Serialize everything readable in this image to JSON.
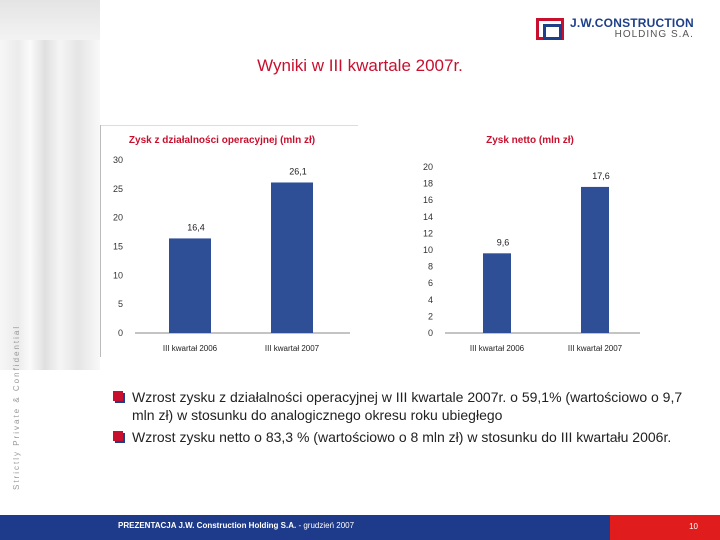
{
  "brand": {
    "name": "J.W.CONSTRUCTION",
    "sub": "HOLDING S.A."
  },
  "side_text": "Strictly Private & Confidential",
  "title": "Wyniki w III kwartale 2007r.",
  "chart_data": [
    {
      "type": "bar",
      "title": "Zysk z działalności operacyjnej (mln zł)",
      "categories": [
        "III kwartał 2006",
        "III kwartał 2007"
      ],
      "values": [
        16.4,
        26.1
      ],
      "value_labels": [
        "16,4",
        "26,1"
      ],
      "yticks": [
        "0",
        "5",
        "10",
        "15",
        "20",
        "25",
        "30"
      ],
      "ylim": [
        0,
        30
      ],
      "bar_color": "#2e4e95",
      "title_color": "#c8102e"
    },
    {
      "type": "bar",
      "title": "Zysk netto (mln zł)",
      "categories": [
        "III kwartał 2006",
        "III kwartał 2007"
      ],
      "values": [
        9.6,
        17.6
      ],
      "value_labels": [
        "9,6",
        "17,6"
      ],
      "yticks": [
        "0",
        "2",
        "4",
        "6",
        "8",
        "10",
        "12",
        "14",
        "16",
        "18",
        "20"
      ],
      "ylim": [
        0,
        20
      ],
      "bar_color": "#2e4e95",
      "title_color": "#c8102e"
    }
  ],
  "bullets": [
    "Wzrost zysku z działalności operacyjnej w III kwartale 2007r. o 59,1% (wartościowo o 9,7 mln zł) w stosunku do analogicznego okresu roku ubiegłego",
    "Wzrost zysku netto o 83,3 % (wartościowo o 8 mln zł) w stosunku do III kwartału 2006r."
  ],
  "footer": {
    "bold": "PREZENTACJA J.W. Construction Holding S.A.",
    "rest": " - grudzień 2007",
    "page": "10"
  }
}
